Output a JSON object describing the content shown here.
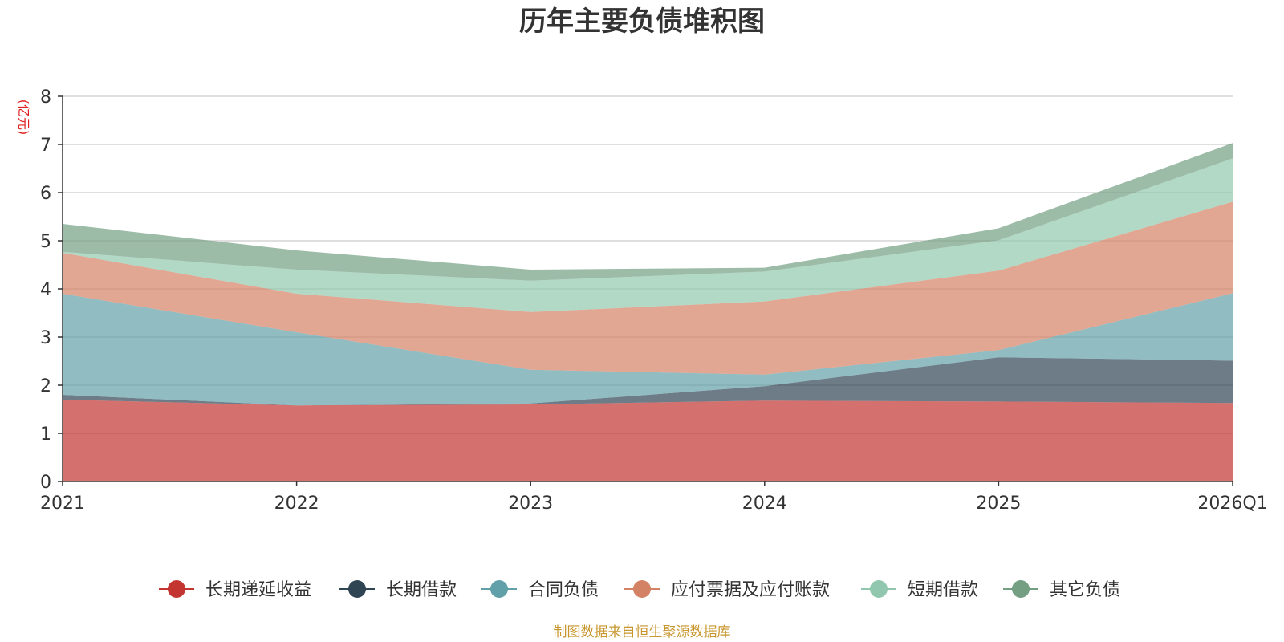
{
  "chart_data": {
    "type": "area",
    "stacked": true,
    "title": "历年主要负债堆积图",
    "ylabel": "(亿元)",
    "xlabel": "",
    "categories": [
      "2021",
      "2022",
      "2023",
      "2024",
      "2025",
      "2026Q1"
    ],
    "ylim": [
      0,
      8
    ],
    "yticks": [
      0,
      1,
      2,
      3,
      4,
      5,
      6,
      7,
      8
    ],
    "grid": true,
    "legend_position": "bottom",
    "series": [
      {
        "name": "长期递延收益",
        "color": "#c23531",
        "values": [
          1.7,
          1.58,
          1.6,
          1.68,
          1.66,
          1.63
        ]
      },
      {
        "name": "长期借款",
        "color": "#2f4554",
        "values": [
          0.1,
          0.0,
          0.02,
          0.3,
          0.92,
          0.88
        ]
      },
      {
        "name": "合同负债",
        "color": "#61a0a8",
        "values": [
          2.1,
          1.52,
          0.7,
          0.24,
          0.15,
          1.4
        ]
      },
      {
        "name": "应付票据及应付账款",
        "color": "#d48265",
        "values": [
          0.85,
          0.8,
          1.2,
          1.52,
          1.65,
          1.9
        ]
      },
      {
        "name": "短期借款",
        "color": "#91c7ae",
        "values": [
          0.02,
          0.5,
          0.65,
          0.62,
          0.63,
          0.9
        ]
      },
      {
        "name": "其它负债",
        "color": "#749f83",
        "values": [
          0.58,
          0.4,
          0.23,
          0.08,
          0.25,
          0.32
        ]
      }
    ]
  },
  "source_note": "制图数据来自恒生聚源数据库"
}
